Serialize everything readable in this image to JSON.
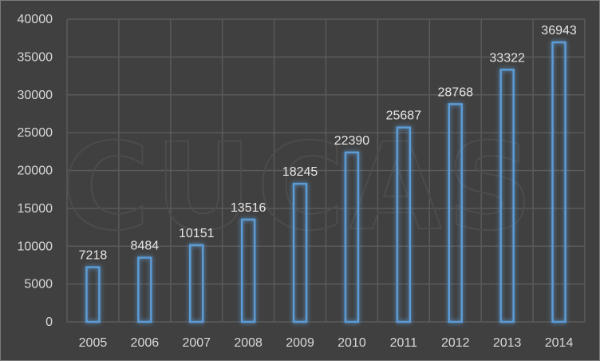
{
  "chart_data": {
    "type": "bar",
    "categories": [
      "2005",
      "2006",
      "2007",
      "2008",
      "2009",
      "2010",
      "2011",
      "2012",
      "2013",
      "2014"
    ],
    "values": [
      7218,
      8484,
      10151,
      13516,
      18245,
      22390,
      25687,
      28768,
      33322,
      36943
    ],
    "title": "",
    "xlabel": "",
    "ylabel": "",
    "ylim": [
      0,
      40000
    ],
    "yticks": [
      0,
      5000,
      10000,
      15000,
      20000,
      25000,
      30000,
      35000,
      40000
    ],
    "grid": true,
    "legend": "none",
    "data_labels": true,
    "watermark": "CUCAS",
    "colors": {
      "background": "#404040",
      "grid": "#5a5a5a",
      "bar_stroke": "#5b9bd5",
      "bar_glow": "#5b9bd5",
      "text": "#d9d9d9"
    }
  }
}
